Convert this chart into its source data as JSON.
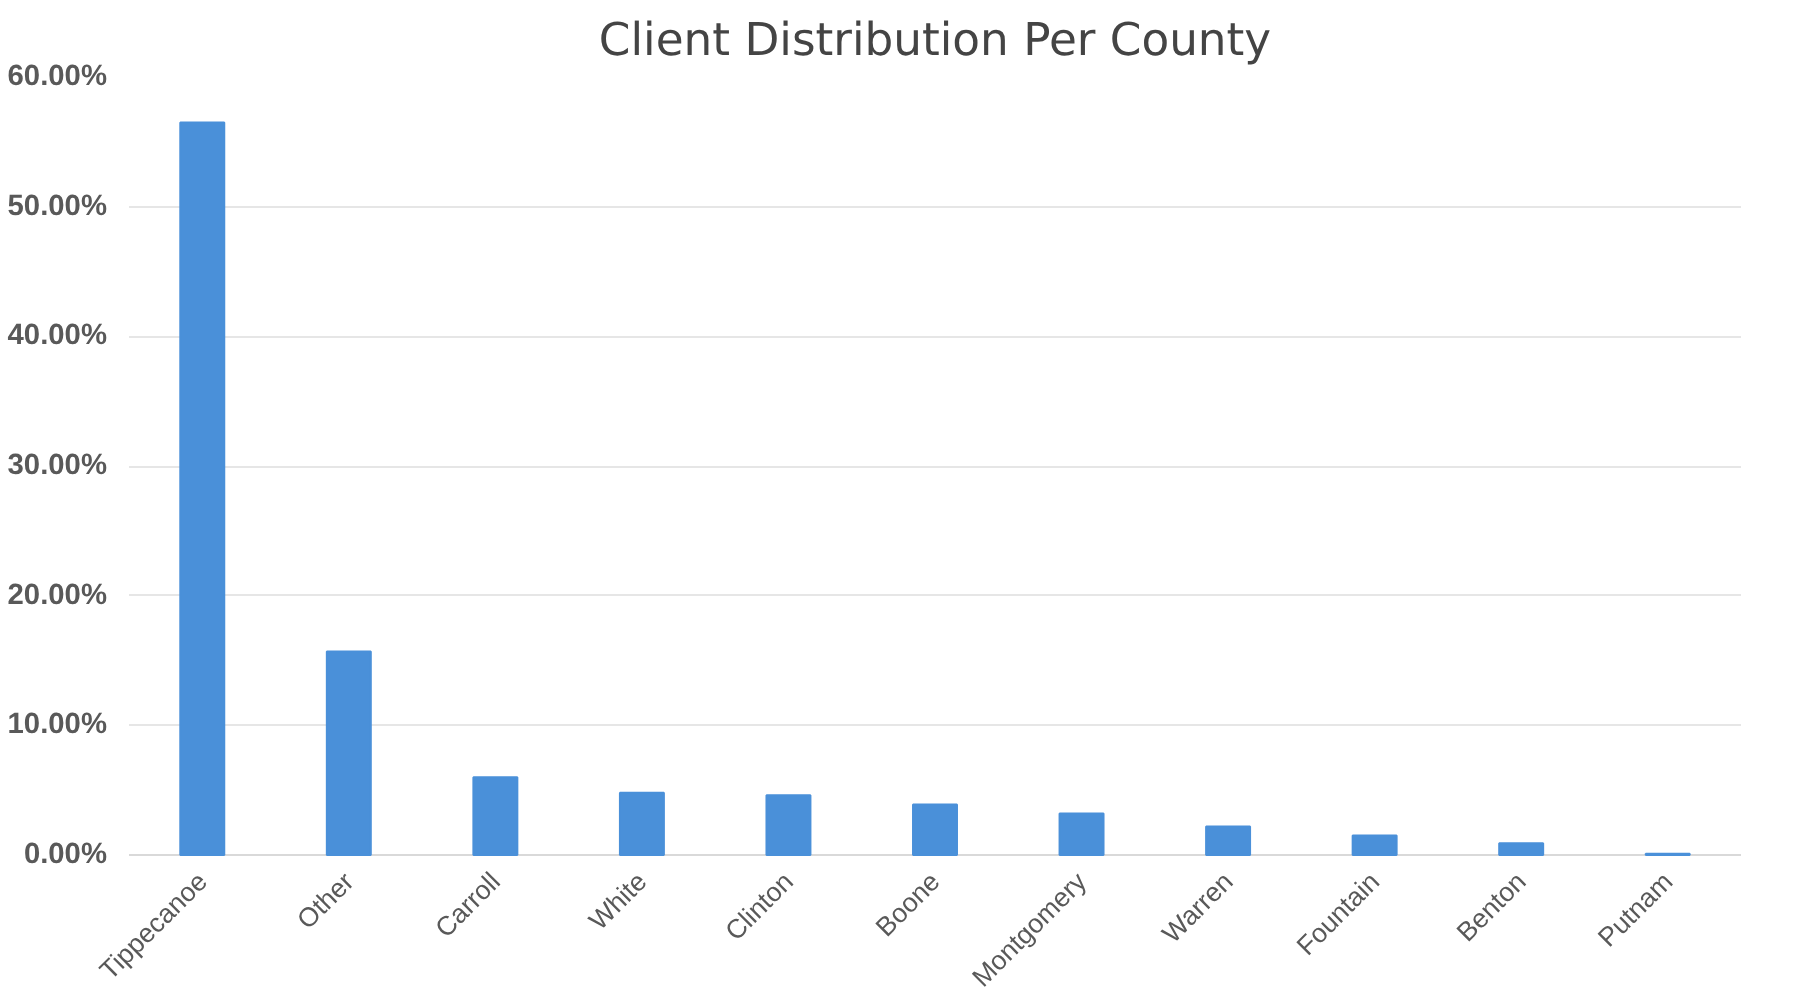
{
  "chart_data": {
    "type": "bar",
    "title": "Client Distribution Per County",
    "categories": [
      "Tippecanoe",
      "Other",
      "Carroll",
      "White",
      "Clinton",
      "Boone",
      "Montgomery",
      "Warren",
      "Fountain",
      "Benton",
      "Putnam"
    ],
    "values": [
      56.5,
      15.7,
      6.0,
      4.8,
      4.6,
      3.9,
      3.2,
      2.2,
      1.5,
      0.9,
      0.1
    ],
    "color": "#4a90d9",
    "ylim": [
      0,
      60
    ],
    "yticks": [
      {
        "value": 0,
        "label": "0.00%"
      },
      {
        "value": 10,
        "label": "10.00%"
      },
      {
        "value": 20,
        "label": "20.00%"
      },
      {
        "value": 30,
        "label": "30.00%"
      },
      {
        "value": 40,
        "label": "40.00%"
      },
      {
        "value": 50,
        "label": "50.00%"
      },
      {
        "value": 60,
        "label": "60.00%"
      }
    ],
    "grid": "y"
  }
}
